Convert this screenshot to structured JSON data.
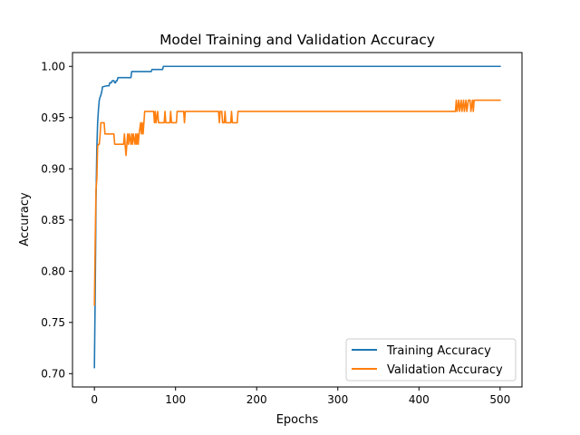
{
  "chart_data": {
    "type": "line",
    "title": "Model Training and Validation Accuracy",
    "xlabel": "Epochs",
    "ylabel": "Accuracy",
    "xlim": [
      -27,
      527
    ],
    "ylim": [
      0.687,
      1.0135
    ],
    "x_ticks": [
      {
        "value": 0,
        "label": "0"
      },
      {
        "value": 100,
        "label": "100"
      },
      {
        "value": 200,
        "label": "200"
      },
      {
        "value": 300,
        "label": "300"
      },
      {
        "value": 400,
        "label": "400"
      },
      {
        "value": 500,
        "label": "500"
      }
    ],
    "y_ticks": [
      {
        "value": 0.7,
        "label": "0.70"
      },
      {
        "value": 0.75,
        "label": "0.75"
      },
      {
        "value": 0.8,
        "label": "0.80"
      },
      {
        "value": 0.85,
        "label": "0.85"
      },
      {
        "value": 0.9,
        "label": "0.90"
      },
      {
        "value": 0.95,
        "label": "0.95"
      },
      {
        "value": 1.0,
        "label": "1.00"
      }
    ],
    "grid": false,
    "legend_position": "bottom-right",
    "series": [
      {
        "name": "Training Accuracy",
        "color": "#1f77b4",
        "points": [
          [
            0,
            0.706
          ],
          [
            1,
            0.78
          ],
          [
            2,
            0.87
          ],
          [
            3,
            0.92
          ],
          [
            4,
            0.945
          ],
          [
            5,
            0.958
          ],
          [
            6,
            0.967
          ],
          [
            7,
            0.97
          ],
          [
            8,
            0.972
          ],
          [
            9,
            0.975
          ],
          [
            10,
            0.98
          ],
          [
            15,
            0.981
          ],
          [
            18,
            0.981
          ],
          [
            19,
            0.984
          ],
          [
            21,
            0.984
          ],
          [
            22,
            0.986
          ],
          [
            24,
            0.986
          ],
          [
            25,
            0.984
          ],
          [
            26,
            0.984
          ],
          [
            27,
            0.986
          ],
          [
            28,
            0.986
          ],
          [
            29,
            0.989
          ],
          [
            45,
            0.989
          ],
          [
            46,
            0.995
          ],
          [
            70,
            0.995
          ],
          [
            71,
            0.997
          ],
          [
            84,
            0.997
          ],
          [
            85,
            1.0
          ],
          [
            500,
            1.0
          ]
        ]
      },
      {
        "name": "Validation Accuracy",
        "color": "#ff7f0e",
        "points": [
          [
            0,
            0.767
          ],
          [
            1,
            0.83
          ],
          [
            2,
            0.88
          ],
          [
            3,
            0.89
          ],
          [
            4,
            0.922
          ],
          [
            5,
            0.924
          ],
          [
            6,
            0.924
          ],
          [
            7,
            0.933
          ],
          [
            8,
            0.945
          ],
          [
            12,
            0.945
          ],
          [
            13,
            0.934
          ],
          [
            24,
            0.934
          ],
          [
            25,
            0.924
          ],
          [
            36,
            0.924
          ],
          [
            37,
            0.934
          ],
          [
            38,
            0.922
          ],
          [
            39,
            0.913
          ],
          [
            40,
            0.924
          ],
          [
            41,
            0.934
          ],
          [
            42,
            0.924
          ],
          [
            43,
            0.934
          ],
          [
            45,
            0.924
          ],
          [
            46,
            0.934
          ],
          [
            47,
            0.924
          ],
          [
            48,
            0.934
          ],
          [
            50,
            0.924
          ],
          [
            51,
            0.934
          ],
          [
            52,
            0.924
          ],
          [
            53,
            0.934
          ],
          [
            54,
            0.924
          ],
          [
            55,
            0.934
          ],
          [
            57,
            0.945
          ],
          [
            58,
            0.934
          ],
          [
            59,
            0.945
          ],
          [
            60,
            0.934
          ],
          [
            61,
            0.945
          ],
          [
            62,
            0.956
          ],
          [
            73,
            0.956
          ],
          [
            74,
            0.945
          ],
          [
            75,
            0.956
          ],
          [
            76,
            0.945
          ],
          [
            78,
            0.956
          ],
          [
            79,
            0.945
          ],
          [
            86,
            0.945
          ],
          [
            87,
            0.956
          ],
          [
            88,
            0.945
          ],
          [
            93,
            0.945
          ],
          [
            94,
            0.956
          ],
          [
            95,
            0.945
          ],
          [
            101,
            0.945
          ],
          [
            102,
            0.956
          ],
          [
            110,
            0.956
          ],
          [
            111,
            0.945
          ],
          [
            112,
            0.956
          ],
          [
            153,
            0.956
          ],
          [
            154,
            0.945
          ],
          [
            155,
            0.956
          ],
          [
            157,
            0.956
          ],
          [
            158,
            0.945
          ],
          [
            160,
            0.945
          ],
          [
            161,
            0.956
          ],
          [
            162,
            0.945
          ],
          [
            168,
            0.945
          ],
          [
            169,
            0.956
          ],
          [
            170,
            0.945
          ],
          [
            176,
            0.945
          ],
          [
            177,
            0.956
          ],
          [
            445,
            0.956
          ],
          [
            446,
            0.967
          ],
          [
            447,
            0.956
          ],
          [
            449,
            0.967
          ],
          [
            450,
            0.956
          ],
          [
            452,
            0.967
          ],
          [
            453,
            0.956
          ],
          [
            455,
            0.967
          ],
          [
            456,
            0.956
          ],
          [
            458,
            0.967
          ],
          [
            459,
            0.956
          ],
          [
            461,
            0.967
          ],
          [
            463,
            0.967
          ],
          [
            464,
            0.956
          ],
          [
            466,
            0.967
          ],
          [
            467,
            0.956
          ],
          [
            468,
            0.967
          ],
          [
            500,
            0.967
          ]
        ]
      }
    ]
  }
}
